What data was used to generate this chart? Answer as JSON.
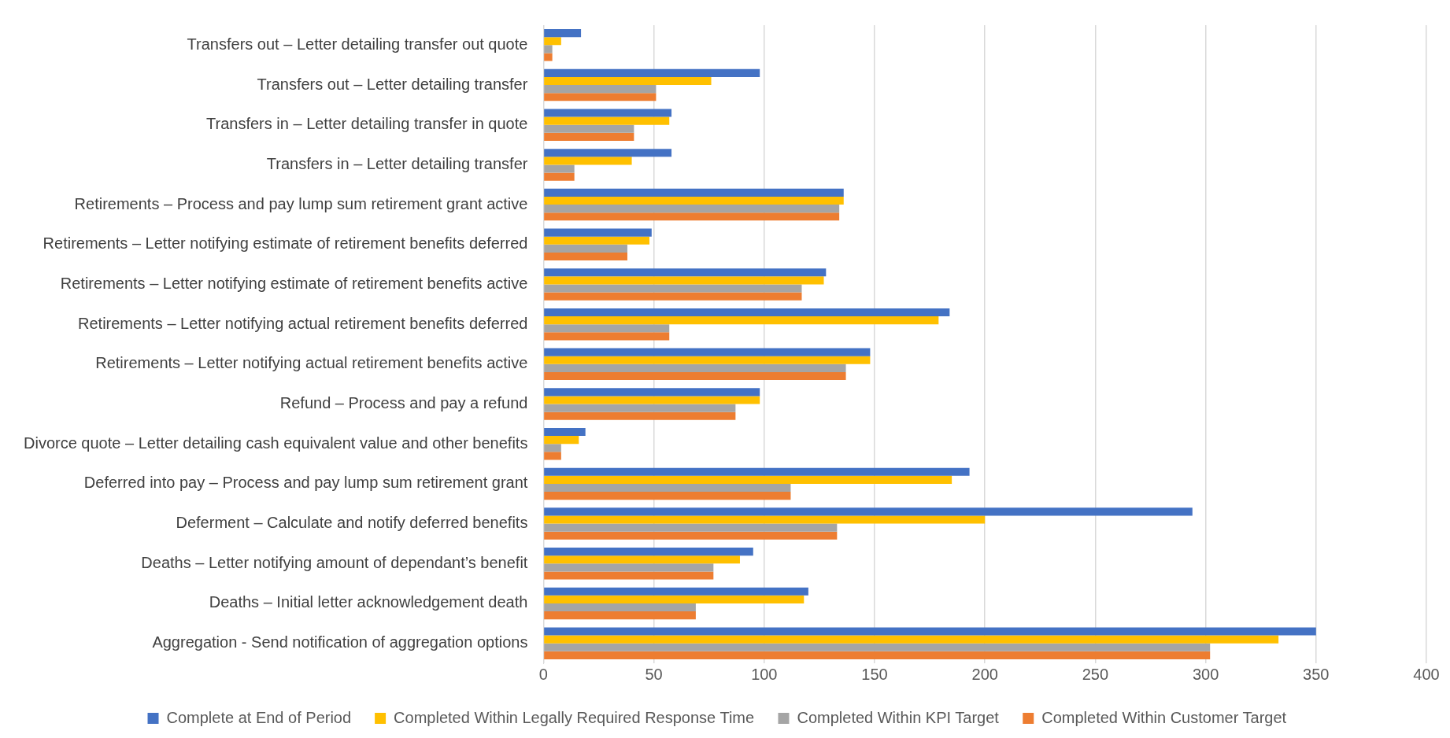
{
  "chart_data": {
    "type": "bar",
    "orientation": "horizontal",
    "categories": [
      "Transfers out – Letter detailing transfer out quote",
      "Transfers out – Letter detailing transfer",
      "Transfers in – Letter detailing transfer in quote",
      "Transfers in – Letter detailing transfer",
      "Retirements – Process and pay lump sum retirement grant active",
      "Retirements – Letter notifying estimate of retirement benefits deferred",
      "Retirements – Letter notifying estimate of retirement benefits active",
      "Retirements – Letter notifying actual retirement benefits deferred",
      "Retirements – Letter notifying actual retirement benefits active",
      "Refund – Process and pay a refund",
      "Divorce quote – Letter detailing cash equivalent value and other benefits",
      "Deferred into pay – Process and pay lump sum retirement grant",
      "Deferment – Calculate and notify deferred benefits",
      "Deaths – Letter notifying amount of dependant’s benefit",
      "Deaths – Initial letter acknowledgement death",
      "Aggregation - Send notification of aggregation options"
    ],
    "series": [
      {
        "name": "Complete at End of Period",
        "color": "#4472c4",
        "values": [
          17,
          98,
          58,
          58,
          136,
          49,
          128,
          184,
          148,
          98,
          19,
          193,
          294,
          95,
          120,
          350
        ]
      },
      {
        "name": "Completed Within Legally Required Response Time",
        "color": "#ffc000",
        "values": [
          8,
          76,
          57,
          40,
          136,
          48,
          127,
          179,
          148,
          98,
          16,
          185,
          200,
          89,
          118,
          333
        ]
      },
      {
        "name": "Completed Within KPI Target",
        "color": "#a5a5a5",
        "values": [
          4,
          51,
          41,
          14,
          134,
          38,
          117,
          57,
          137,
          87,
          8,
          112,
          133,
          77,
          69,
          302
        ]
      },
      {
        "name": "Completed Within Customer Target",
        "color": "#ed7d31",
        "values": [
          4,
          51,
          41,
          14,
          134,
          38,
          117,
          57,
          137,
          87,
          8,
          112,
          133,
          77,
          69,
          302
        ]
      }
    ],
    "xlim": [
      0,
      400
    ],
    "xticks": [
      0,
      50,
      100,
      150,
      200,
      250,
      300,
      350,
      400
    ],
    "grid": "x",
    "legend": "bottom"
  }
}
